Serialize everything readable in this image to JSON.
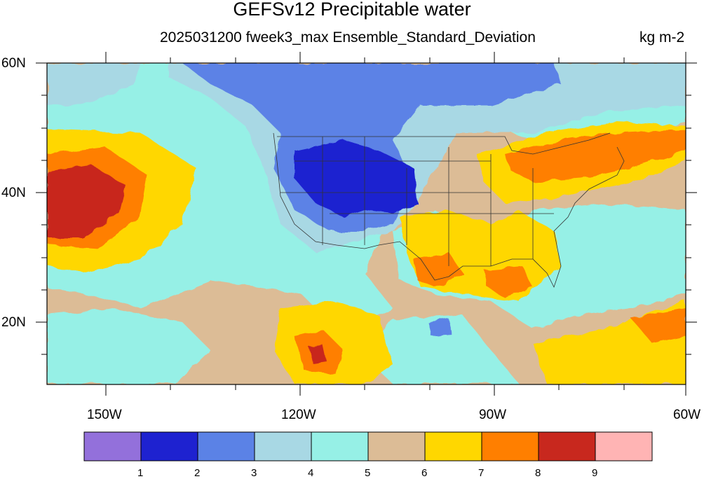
{
  "title": "GEFSv12 Precipitable water",
  "subtitle": "2025031200 fweek3_max Ensemble_Standard_Deviation",
  "units": "kg m-2",
  "lat_labels": [
    "60N",
    "40N",
    "20N"
  ],
  "lon_labels": [
    "150W",
    "120W",
    "90W",
    "60W"
  ],
  "colorbar": {
    "colors": [
      "#9370DB",
      "#1E22D0",
      "#5B82E6",
      "#A8D8E4",
      "#96F0E6",
      "#DCBC96",
      "#FFD700",
      "#FF7F00",
      "#C8281E",
      "#FFB4B4"
    ],
    "labels": [
      "1",
      "2",
      "3",
      "4",
      "5",
      "6",
      "7",
      "8",
      "9"
    ]
  },
  "map": {
    "extent": {
      "lon_min": -160,
      "lon_max": -60,
      "lat_min": 10,
      "lat_max": 60
    },
    "land_features": [
      "coastlines",
      "us-state-borders"
    ]
  }
}
